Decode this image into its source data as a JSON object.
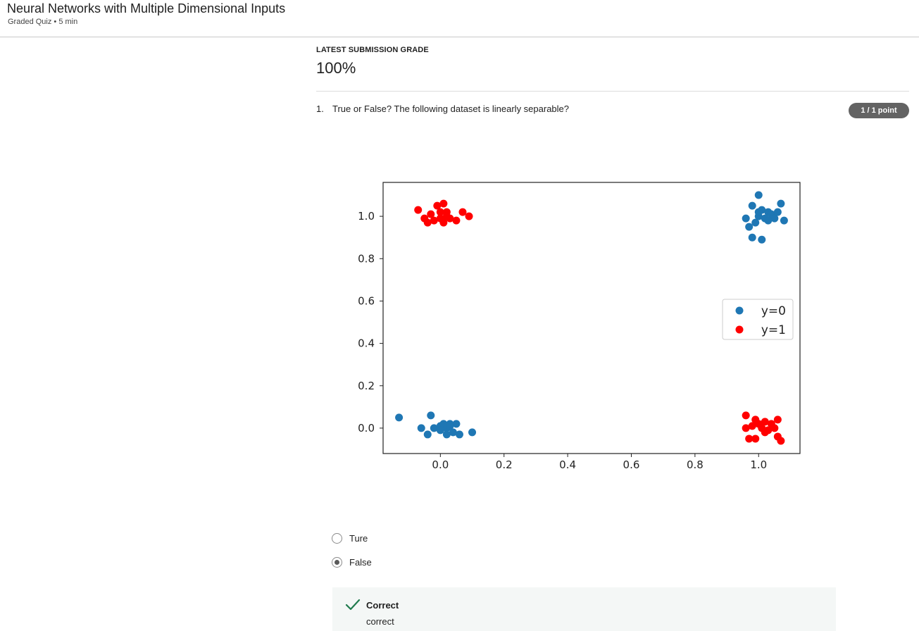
{
  "header": {
    "title": "Neural Networks with Multiple Dimensional Inputs",
    "subtitle": "Graded Quiz • 5 min"
  },
  "grade": {
    "label": "LATEST SUBMISSION GRADE",
    "value": "100%"
  },
  "question": {
    "number": "1.",
    "text": "True or False? The following dataset is linearly separable?",
    "points": "1 / 1 point"
  },
  "options": [
    {
      "label": "Ture",
      "selected": false
    },
    {
      "label": "False",
      "selected": true
    }
  ],
  "feedback": {
    "icon": "check-icon",
    "title": "Correct",
    "text": "correct"
  },
  "colors": {
    "class0": "#1f77b4",
    "class1": "#ff0000",
    "badge": "#636363",
    "check": "#1f7a4d"
  },
  "chart_data": {
    "type": "scatter",
    "xlim": [
      -0.18,
      1.13
    ],
    "ylim": [
      -0.12,
      1.16
    ],
    "xticks": [
      0.0,
      0.2,
      0.4,
      0.6,
      0.8,
      1.0
    ],
    "yticks": [
      0.0,
      0.2,
      0.4,
      0.6,
      0.8,
      1.0
    ],
    "xtick_labels": [
      "0.0",
      "0.2",
      "0.4",
      "0.6",
      "0.8",
      "1.0"
    ],
    "ytick_labels": [
      "0.0",
      "0.2",
      "0.4",
      "0.6",
      "0.8",
      "1.0"
    ],
    "grid": false,
    "legend_position": "center-right",
    "series": [
      {
        "name": "y=0",
        "color": "#1f77b4",
        "points": [
          [
            -0.13,
            0.05
          ],
          [
            -0.03,
            0.06
          ],
          [
            -0.06,
            0.0
          ],
          [
            -0.04,
            -0.03
          ],
          [
            -0.02,
            0.0
          ],
          [
            0.0,
            0.01
          ],
          [
            0.01,
            0.02
          ],
          [
            0.02,
            0.0
          ],
          [
            0.02,
            -0.03
          ],
          [
            0.03,
            0.01
          ],
          [
            0.04,
            -0.02
          ],
          [
            0.05,
            0.02
          ],
          [
            0.06,
            -0.03
          ],
          [
            0.1,
            -0.02
          ],
          [
            0.0,
            -0.01
          ],
          [
            0.03,
            0.02
          ],
          [
            1.0,
            1.1
          ],
          [
            0.98,
            1.05
          ],
          [
            0.96,
            0.99
          ],
          [
            0.97,
            0.95
          ],
          [
            0.99,
            0.97
          ],
          [
            1.0,
            1.0
          ],
          [
            1.01,
            1.03
          ],
          [
            1.02,
            0.99
          ],
          [
            1.03,
            1.02
          ],
          [
            1.04,
            1.01
          ],
          [
            1.05,
            0.99
          ],
          [
            1.06,
            1.02
          ],
          [
            1.07,
            1.06
          ],
          [
            1.08,
            0.98
          ],
          [
            0.98,
            0.9
          ],
          [
            1.01,
            0.89
          ],
          [
            1.0,
            1.02
          ],
          [
            1.03,
            0.98
          ]
        ]
      },
      {
        "name": "y=1",
        "color": "#ff0000",
        "points": [
          [
            -0.07,
            1.03
          ],
          [
            -0.05,
            0.99
          ],
          [
            -0.04,
            0.97
          ],
          [
            -0.03,
            1.01
          ],
          [
            -0.01,
            1.05
          ],
          [
            0.0,
            1.02
          ],
          [
            0.01,
            1.06
          ],
          [
            0.0,
            0.99
          ],
          [
            0.01,
            0.97
          ],
          [
            0.02,
            1.02
          ],
          [
            0.03,
            0.99
          ],
          [
            0.05,
            0.98
          ],
          [
            0.07,
            1.02
          ],
          [
            0.09,
            1.0
          ],
          [
            0.02,
            1.0
          ],
          [
            -0.02,
            0.98
          ],
          [
            0.96,
            0.06
          ],
          [
            0.96,
            0.0
          ],
          [
            0.97,
            -0.05
          ],
          [
            0.99,
            0.04
          ],
          [
            0.99,
            -0.05
          ],
          [
            1.0,
            0.02
          ],
          [
            1.01,
            0.0
          ],
          [
            1.02,
            0.03
          ],
          [
            1.03,
            -0.01
          ],
          [
            1.04,
            0.02
          ],
          [
            1.05,
            0.0
          ],
          [
            1.06,
            -0.04
          ],
          [
            1.07,
            -0.06
          ],
          [
            1.06,
            0.04
          ],
          [
            0.98,
            0.01
          ],
          [
            1.02,
            -0.02
          ]
        ]
      }
    ]
  }
}
